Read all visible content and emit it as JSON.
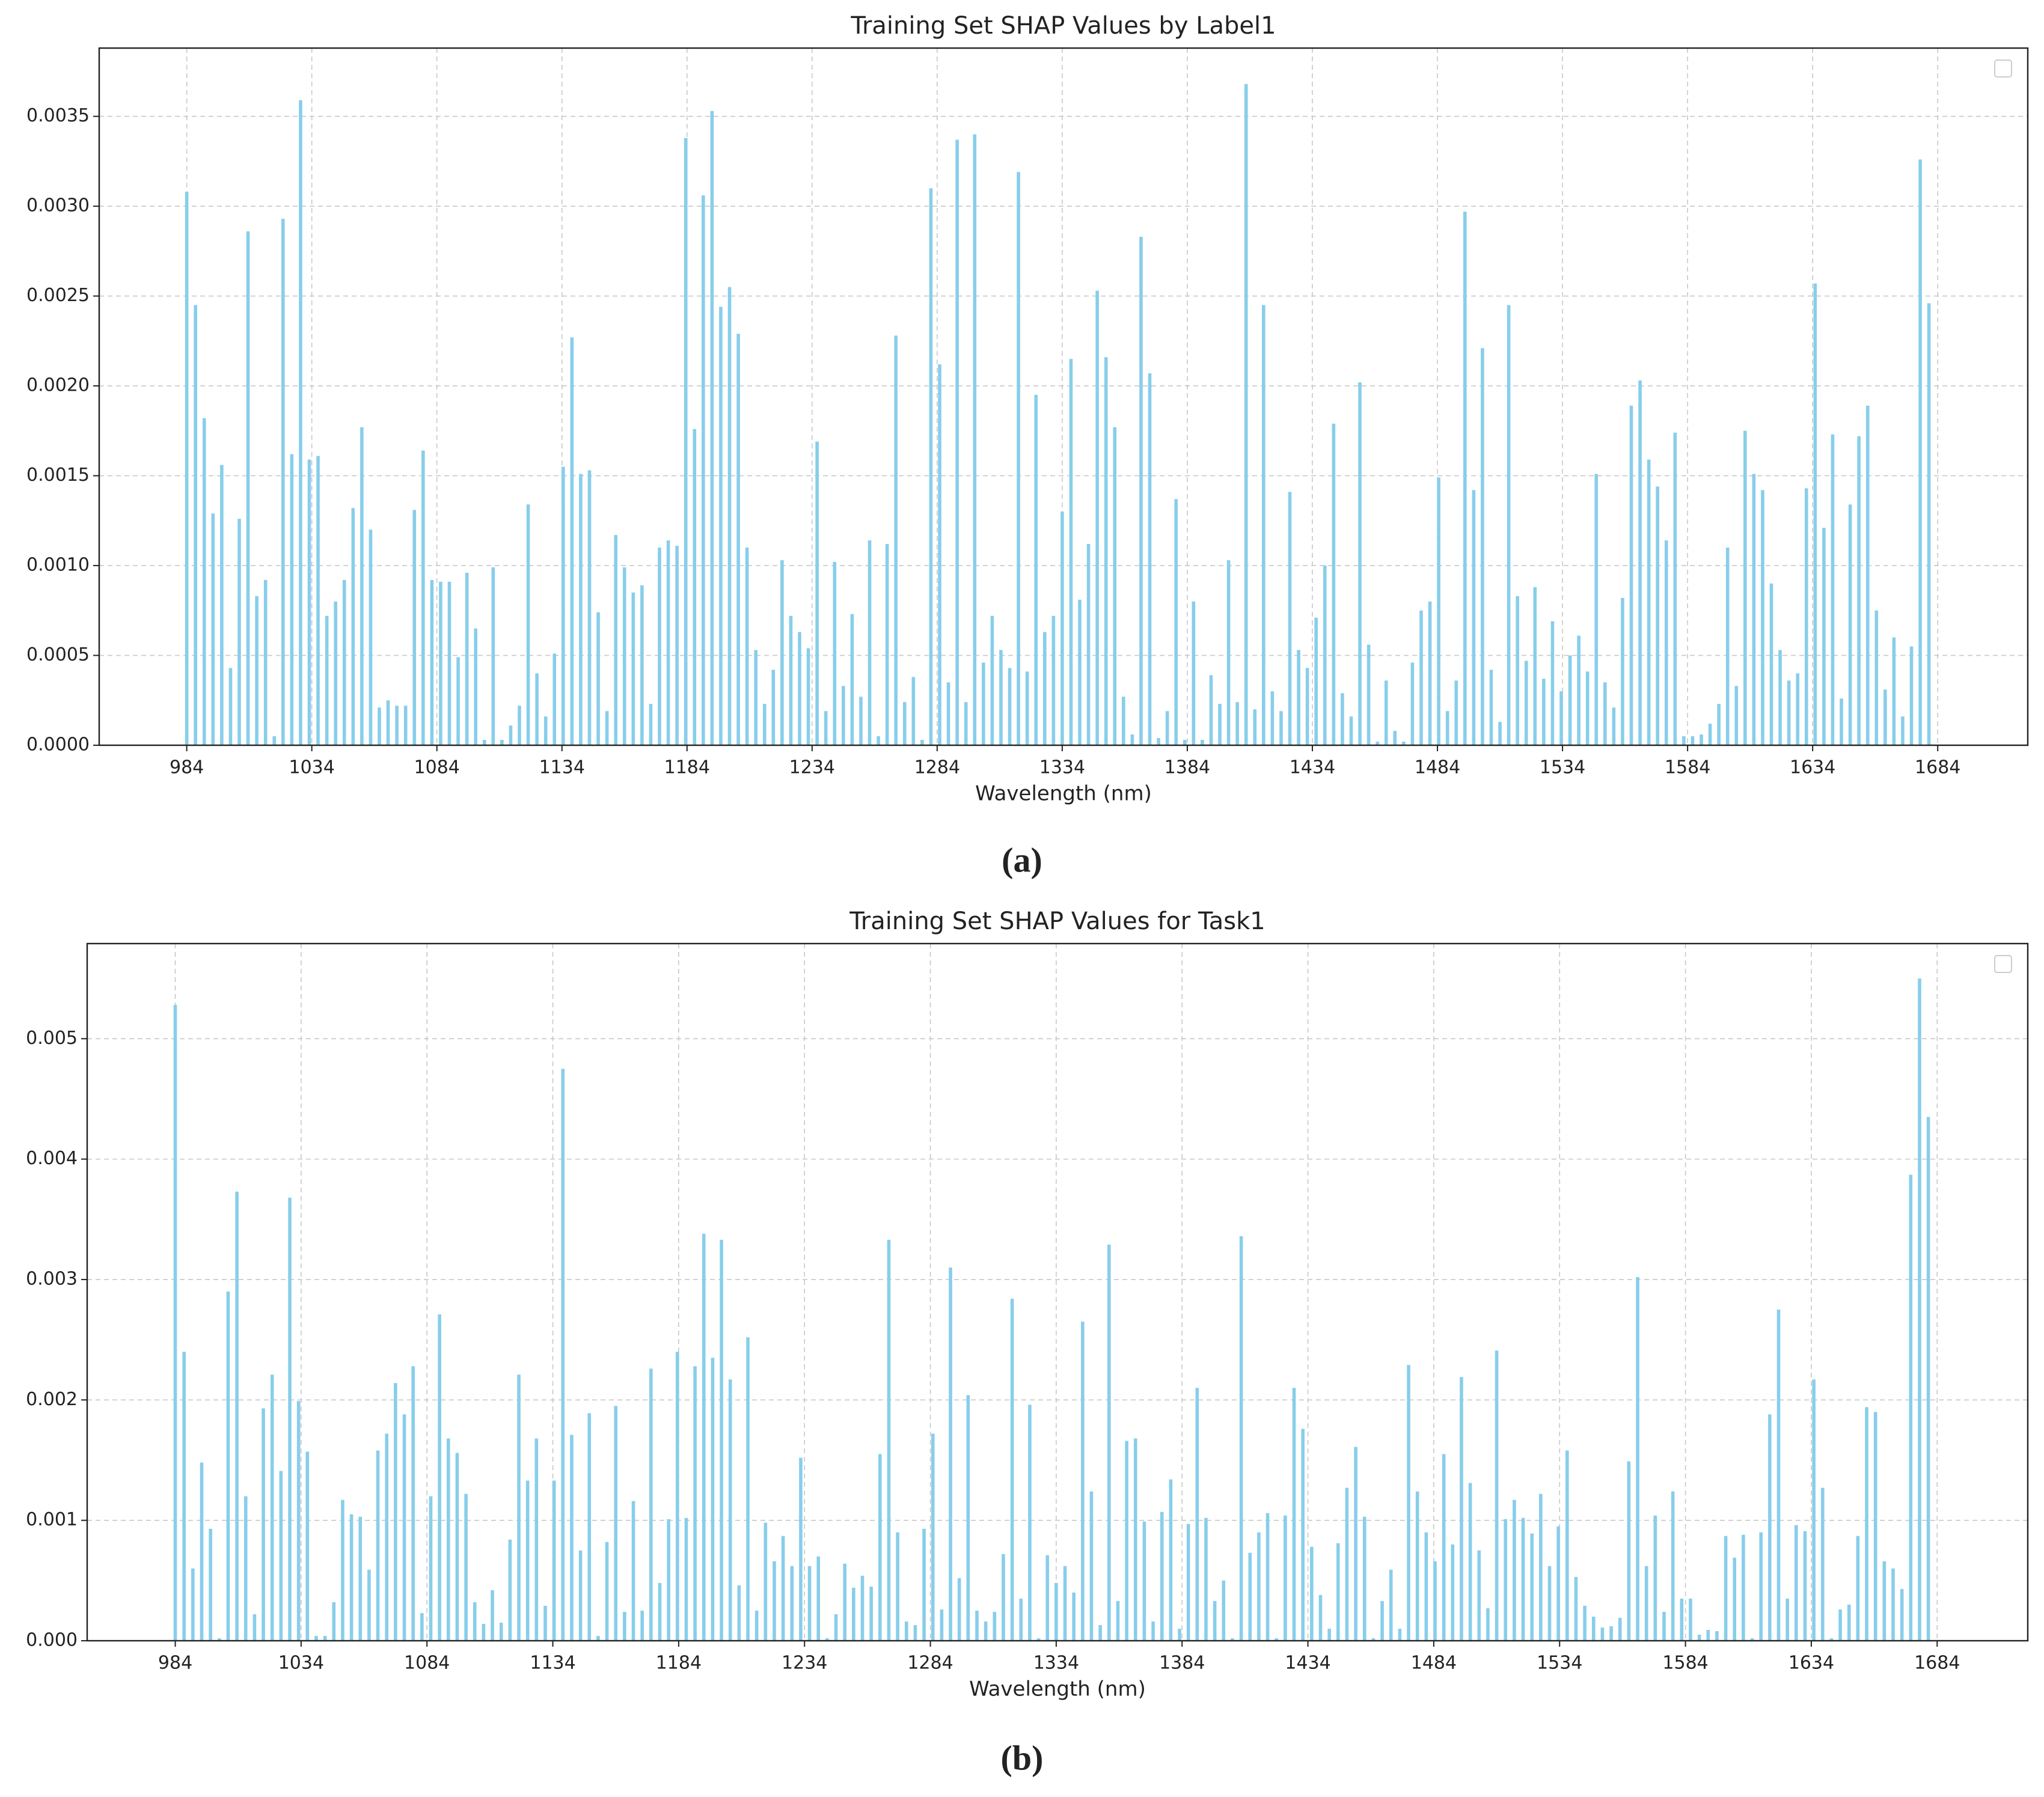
{
  "chart_data": [
    {
      "type": "bar",
      "title": "Training Set SHAP Values by Label1",
      "xlabel": "Wavelength (nm)",
      "caption": "(a)",
      "color": "#87ceeb",
      "grid": true,
      "x": [
        984,
        987.5,
        991,
        994.5,
        998,
        1001.5,
        1005,
        1008.5,
        1012,
        1015.5,
        1019,
        1022.5,
        1026,
        1029.5,
        1033,
        1036.5,
        1040,
        1043.5,
        1047,
        1050.5,
        1054,
        1057.5,
        1061,
        1064.5,
        1068,
        1071.5,
        1075,
        1078.5,
        1082,
        1085.5,
        1089,
        1092.5,
        1096,
        1099.5,
        1103,
        1106.5,
        1110,
        1113.5,
        1117,
        1120.5,
        1124,
        1127.5,
        1131,
        1134.5,
        1138,
        1141.5,
        1145,
        1148.5,
        1152,
        1155.5,
        1159,
        1162.5,
        1166,
        1169.5,
        1173,
        1176.5,
        1180,
        1183.5,
        1187,
        1190.5,
        1194,
        1197.5,
        1201,
        1204.5,
        1208,
        1211.5,
        1215,
        1218.5,
        1222,
        1225.5,
        1229,
        1232.5,
        1236,
        1239.5,
        1243,
        1246.5,
        1250,
        1253.5,
        1257,
        1260.5,
        1264,
        1267.5,
        1271,
        1274.5,
        1278,
        1281.5,
        1285,
        1288.5,
        1292,
        1295.5,
        1299,
        1302.5,
        1306,
        1309.5,
        1313,
        1316.5,
        1320,
        1323.5,
        1327,
        1330.5,
        1334,
        1337.5,
        1341,
        1344.5,
        1348,
        1351.5,
        1355,
        1358.5,
        1362,
        1365.5,
        1369,
        1372.5,
        1376,
        1379.5,
        1383,
        1386.5,
        1390,
        1393.5,
        1397,
        1400.5,
        1404,
        1407.5,
        1411,
        1414.5,
        1418,
        1421.5,
        1425,
        1428.5,
        1432,
        1435.5,
        1439,
        1442.5,
        1446,
        1449.5,
        1453,
        1456.5,
        1460,
        1463.5,
        1467,
        1470.5,
        1474,
        1477.5,
        1481,
        1484.5,
        1488,
        1491.5,
        1495,
        1498.5,
        1502,
        1505.5,
        1509,
        1512.5,
        1516,
        1519.5,
        1523,
        1526.5,
        1530,
        1533.5,
        1537,
        1540.5,
        1544,
        1547.5,
        1551,
        1554.5,
        1558,
        1561.5,
        1565,
        1568.5,
        1572,
        1575.5,
        1579,
        1582.5,
        1586,
        1589.5,
        1593,
        1596.5,
        1600,
        1603.5,
        1607,
        1610.5,
        1614,
        1617.5,
        1621,
        1624.5,
        1628,
        1631.5,
        1635,
        1638.5,
        1642,
        1645.5,
        1649,
        1652.5,
        1656,
        1659.5,
        1663,
        1666.5,
        1670,
        1673.5,
        1677,
        1680.5
      ],
      "values": [
        0.00308,
        0.00245,
        0.00182,
        0.00129,
        0.00156,
        0.00043,
        0.00126,
        0.00286,
        0.00083,
        0.00092,
        5e-05,
        0.00293,
        0.00162,
        0.00359,
        0.00159,
        0.00161,
        0.00072,
        0.0008,
        0.00092,
        0.00132,
        0.00177,
        0.0012,
        0.00021,
        0.00025,
        0.00022,
        0.00022,
        0.00131,
        0.00164,
        0.00092,
        0.00091,
        0.00091,
        0.00049,
        0.00096,
        0.00065,
        3e-05,
        0.00099,
        3e-05,
        0.00011,
        0.00022,
        0.00134,
        0.0004,
        0.00016,
        0.00051,
        0.00155,
        0.00227,
        0.00151,
        0.00153,
        0.00074,
        0.00019,
        0.00117,
        0.00099,
        0.00085,
        0.00089,
        0.00023,
        0.0011,
        0.00114,
        0.00111,
        0.00338,
        0.00176,
        0.00306,
        0.00353,
        0.00244,
        0.00255,
        0.00229,
        0.0011,
        0.00053,
        0.00023,
        0.00042,
        0.00103,
        0.00072,
        0.00063,
        0.00054,
        0.00169,
        0.00019,
        0.00102,
        0.00033,
        0.00073,
        0.00027,
        0.00114,
        5e-05,
        0.00112,
        0.00228,
        0.00024,
        0.00038,
        3e-05,
        0.0031,
        0.00212,
        0.00035,
        0.00337,
        0.00024,
        0.0034,
        0.00046,
        0.00072,
        0.00053,
        0.00043,
        0.00319,
        0.00041,
        0.00195,
        0.00063,
        0.00072,
        0.0013,
        0.00215,
        0.00081,
        0.00112,
        0.00253,
        0.00216,
        0.00177,
        0.00027,
        6e-05,
        0.00283,
        0.00207,
        4e-05,
        0.00019,
        0.00137,
        3e-05,
        0.0008,
        3e-05,
        0.00039,
        0.00023,
        0.00103,
        0.00024,
        0.00368,
        0.0002,
        0.00245,
        0.0003,
        0.00019,
        0.00141,
        0.00053,
        0.00043,
        0.00071,
        0.001,
        0.00179,
        0.00029,
        0.00016,
        0.00202,
        0.00056,
        2e-05,
        0.00036,
        8e-05,
        2e-05,
        0.00046,
        0.00075,
        0.0008,
        0.00149,
        0.00019,
        0.00036,
        0.00297,
        0.00142,
        0.00221,
        0.00042,
        0.00013,
        0.00245,
        0.00083,
        0.00047,
        0.00088,
        0.00037,
        0.00069,
        0.0003,
        0.0005,
        0.00061,
        0.00041,
        0.00151,
        0.00035,
        0.00021,
        0.00082,
        0.00189,
        0.00203,
        0.00159,
        0.00144,
        0.00114,
        0.00174,
        5e-05,
        5e-05,
        6e-05,
        0.00012,
        0.00023,
        0.0011,
        0.00033,
        0.00175,
        0.00151,
        0.00142,
        0.0009,
        0.00053,
        0.00036,
        0.0004,
        0.00143,
        0.00257,
        0.00121,
        0.00173,
        0.00026,
        0.00134,
        0.00172,
        0.00189,
        0.00075,
        0.00031,
        0.0006,
        0.00016,
        0.00055,
        0.00326,
        0.00246
      ],
      "xlim": [
        949,
        1720
      ],
      "xticks": [
        984,
        1034,
        1084,
        1134,
        1184,
        1234,
        1284,
        1334,
        1384,
        1434,
        1484,
        1534,
        1584,
        1634,
        1684
      ],
      "ylim": [
        0,
        0.00388
      ],
      "yticks": [
        {
          "value": 0,
          "label": "0.0000"
        },
        {
          "value": 0.0005,
          "label": "0.0005"
        },
        {
          "value": 0.001,
          "label": "0.0010"
        },
        {
          "value": 0.0015,
          "label": "0.0015"
        },
        {
          "value": 0.002,
          "label": "0.0020"
        },
        {
          "value": 0.0025,
          "label": "0.0025"
        },
        {
          "value": 0.003,
          "label": "0.0030"
        },
        {
          "value": 0.0035,
          "label": "0.0035"
        }
      ]
    },
    {
      "type": "bar",
      "title": "Training Set SHAP Values for Task1",
      "xlabel": "Wavelength (nm)",
      "caption": "(b)",
      "color": "#87ceeb",
      "grid": true,
      "x": [
        984,
        987.5,
        991,
        994.5,
        998,
        1001.5,
        1005,
        1008.5,
        1012,
        1015.5,
        1019,
        1022.5,
        1026,
        1029.5,
        1033,
        1036.5,
        1040,
        1043.5,
        1047,
        1050.5,
        1054,
        1057.5,
        1061,
        1064.5,
        1068,
        1071.5,
        1075,
        1078.5,
        1082,
        1085.5,
        1089,
        1092.5,
        1096,
        1099.5,
        1103,
        1106.5,
        1110,
        1113.5,
        1117,
        1120.5,
        1124,
        1127.5,
        1131,
        1134.5,
        1138,
        1141.5,
        1145,
        1148.5,
        1152,
        1155.5,
        1159,
        1162.5,
        1166,
        1169.5,
        1173,
        1176.5,
        1180,
        1183.5,
        1187,
        1190.5,
        1194,
        1197.5,
        1201,
        1204.5,
        1208,
        1211.5,
        1215,
        1218.5,
        1222,
        1225.5,
        1229,
        1232.5,
        1236,
        1239.5,
        1243,
        1246.5,
        1250,
        1253.5,
        1257,
        1260.5,
        1264,
        1267.5,
        1271,
        1274.5,
        1278,
        1281.5,
        1285,
        1288.5,
        1292,
        1295.5,
        1299,
        1302.5,
        1306,
        1309.5,
        1313,
        1316.5,
        1320,
        1323.5,
        1327,
        1330.5,
        1334,
        1337.5,
        1341,
        1344.5,
        1348,
        1351.5,
        1355,
        1358.5,
        1362,
        1365.5,
        1369,
        1372.5,
        1376,
        1379.5,
        1383,
        1386.5,
        1390,
        1393.5,
        1397,
        1400.5,
        1404,
        1407.5,
        1411,
        1414.5,
        1418,
        1421.5,
        1425,
        1428.5,
        1432,
        1435.5,
        1439,
        1442.5,
        1446,
        1449.5,
        1453,
        1456.5,
        1460,
        1463.5,
        1467,
        1470.5,
        1474,
        1477.5,
        1481,
        1484.5,
        1488,
        1491.5,
        1495,
        1498.5,
        1502,
        1505.5,
        1509,
        1512.5,
        1516,
        1519.5,
        1523,
        1526.5,
        1530,
        1533.5,
        1537,
        1540.5,
        1544,
        1547.5,
        1551,
        1554.5,
        1558,
        1561.5,
        1565,
        1568.5,
        1572,
        1575.5,
        1579,
        1582.5,
        1586,
        1589.5,
        1593,
        1596.5,
        1600,
        1603.5,
        1607,
        1610.5,
        1614,
        1617.5,
        1621,
        1624.5,
        1628,
        1631.5,
        1635,
        1638.5,
        1642,
        1645.5,
        1649,
        1652.5,
        1656,
        1659.5,
        1663,
        1666.5,
        1670,
        1673.5,
        1677,
        1680.5
      ],
      "values": [
        0.00528,
        0.0024,
        0.0006,
        0.00148,
        0.00093,
        2e-05,
        0.0029,
        0.00373,
        0.0012,
        0.00022,
        0.00193,
        0.00221,
        0.00141,
        0.00368,
        0.00199,
        0.00157,
        4e-05,
        4e-05,
        0.00032,
        0.00117,
        0.00105,
        0.00103,
        0.00059,
        0.00158,
        0.00172,
        0.00214,
        0.00188,
        0.00228,
        0.00023,
        0.0012,
        0.00271,
        0.00168,
        0.00156,
        0.00122,
        0.00032,
        0.00014,
        0.00042,
        0.00015,
        0.00084,
        0.00221,
        0.00133,
        0.00168,
        0.00029,
        0.00133,
        0.00475,
        0.00171,
        0.00075,
        0.00189,
        4e-05,
        0.00082,
        0.00195,
        0.00024,
        0.00116,
        0.00025,
        0.00226,
        0.00048,
        0.00101,
        0.0024,
        0.00102,
        0.00228,
        0.00338,
        0.00235,
        0.00333,
        0.00217,
        0.00046,
        0.00252,
        0.00025,
        0.00098,
        0.00066,
        0.00087,
        0.00062,
        0.00152,
        0.00062,
        0.0007,
        2e-05,
        0.00022,
        0.00064,
        0.00044,
        0.00054,
        0.00045,
        0.00155,
        0.00333,
        0.0009,
        0.00016,
        0.00013,
        0.00093,
        0.00172,
        0.00026,
        0.0031,
        0.00052,
        0.00204,
        0.00025,
        0.00016,
        0.00024,
        0.00072,
        0.00284,
        0.00035,
        0.00196,
        2e-05,
        0.00071,
        0.00048,
        0.00062,
        0.0004,
        0.00265,
        0.00124,
        0.00013,
        0.00329,
        0.00033,
        0.00166,
        0.00168,
        0.00099,
        0.00016,
        0.00107,
        0.00134,
        0.0001,
        0.00097,
        0.0021,
        0.00102,
        0.00033,
        0.0005,
        2e-05,
        0.00336,
        0.00073,
        0.0009,
        0.00106,
        2e-05,
        0.00104,
        0.0021,
        0.00176,
        0.00078,
        0.00038,
        0.0001,
        0.00081,
        0.00127,
        0.00161,
        0.00103,
        2e-05,
        0.00033,
        0.00059,
        0.0001,
        0.00229,
        0.00124,
        0.0009,
        0.00066,
        0.00155,
        0.0008,
        0.00219,
        0.00131,
        0.00075,
        0.00027,
        0.00241,
        0.00101,
        0.00117,
        0.00102,
        0.00089,
        0.00122,
        0.00062,
        0.00095,
        0.00158,
        0.00053,
        0.00029,
        0.0002,
        0.00011,
        0.00012,
        0.00019,
        0.00149,
        0.00302,
        0.00062,
        0.00104,
        0.00024,
        0.00124,
        0.00035,
        0.00035,
        5e-05,
        9e-05,
        8e-05,
        0.00087,
        0.00069,
        0.00088,
        2e-05,
        0.0009,
        0.00188,
        0.00275,
        0.00035,
        0.00096,
        0.00091,
        0.00217,
        0.00127,
        2e-05,
        0.00026,
        0.0003,
        0.00087,
        0.00194,
        0.0019,
        0.00066,
        0.0006,
        0.00043,
        0.00387,
        0.0055,
        0.00435
      ],
      "xlim": [
        949,
        1720
      ],
      "xticks": [
        984,
        1034,
        1084,
        1134,
        1184,
        1234,
        1284,
        1334,
        1384,
        1434,
        1484,
        1534,
        1584,
        1634,
        1684
      ],
      "ylim": [
        0,
        0.00579
      ],
      "yticks": [
        {
          "value": 0,
          "label": "0.000"
        },
        {
          "value": 0.001,
          "label": "0.001"
        },
        {
          "value": 0.002,
          "label": "0.002"
        },
        {
          "value": 0.003,
          "label": "0.003"
        },
        {
          "value": 0.004,
          "label": "0.004"
        },
        {
          "value": 0.005,
          "label": "0.005"
        }
      ]
    }
  ]
}
